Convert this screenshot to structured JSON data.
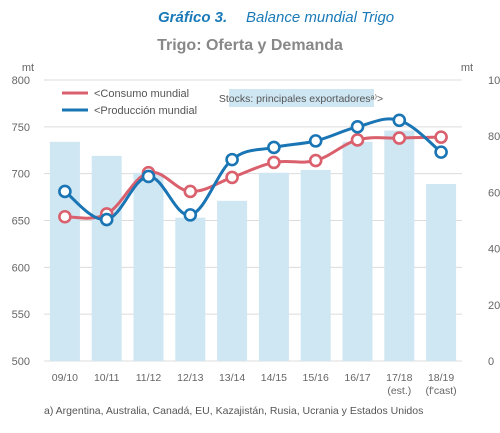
{
  "header": {
    "figure_label": "Gráfico 3.",
    "figure_title": "Balance mundial Trigo",
    "subtitle": "Trigo: Oferta y Demanda"
  },
  "footnote": "a) Argentina, Australia, Canadá, EU, Kazajistán, Rusia, Ucrania y Estados Unidos",
  "colors": {
    "title_blue": "#1a7ab8",
    "bar_fill": "#cfe6f3",
    "consumo": "#d9606c",
    "produccion": "#1a75b4",
    "axis_text": "#666666",
    "grid": "#dcdcdc",
    "legend_box": "#cfe6f3"
  },
  "chart_data": {
    "type": "bar+line",
    "categories": [
      "09/10",
      "10/11",
      "11/12",
      "12/13",
      "13/14",
      "14/15",
      "15/16",
      "16/17",
      "17/18\n(est.)",
      "18/19\n(f'cast)"
    ],
    "left_axis": {
      "unit": "mt",
      "ylim": [
        500,
        800
      ],
      "ticks": [
        500,
        550,
        600,
        650,
        700,
        750,
        800
      ]
    },
    "right_axis": {
      "unit": "mt",
      "ylim": [
        0,
        100
      ],
      "ticks": [
        0,
        20,
        40,
        60,
        80,
        100
      ]
    },
    "bars": {
      "name": "Stocks: principales exportadoresᵃ⁾>",
      "axis": "right",
      "values": [
        78,
        73,
        67,
        51,
        57,
        67,
        68,
        78,
        82,
        63
      ]
    },
    "series": [
      {
        "name": "<Consumo mundial",
        "axis": "left",
        "color_key": "consumo",
        "values": [
          654,
          657,
          701,
          681,
          696,
          712,
          714,
          736,
          738,
          739
        ]
      },
      {
        "name": "<Producción mundial",
        "axis": "left",
        "color_key": "produccion",
        "values": [
          681,
          651,
          697,
          656,
          715,
          728,
          735,
          750,
          757,
          723
        ]
      }
    ],
    "grid": true,
    "legend_position": "top-left"
  }
}
